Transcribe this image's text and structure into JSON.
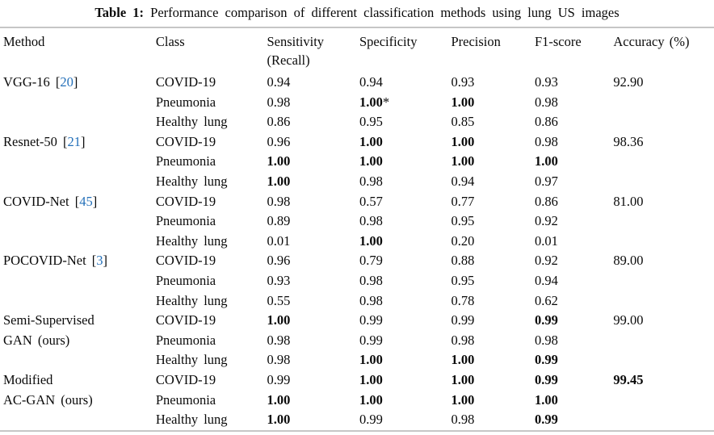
{
  "caption": {
    "label": "Table 1:",
    "text": "Performance comparison of different classification methods using lung US images"
  },
  "colors": {
    "citation_link": "#2470b9",
    "rule_gray": "#c6c6c6",
    "text": "#0a0a0a"
  },
  "table": {
    "headers": [
      {
        "line1": "Method"
      },
      {
        "line1": "Class"
      },
      {
        "line1": "Sensitivity",
        "line2": "(Recall)"
      },
      {
        "line1": "Specificity"
      },
      {
        "line1": "Precision"
      },
      {
        "line1": "F1-score"
      },
      {
        "line1": "Accuracy (%)"
      }
    ],
    "rows": [
      {
        "method": "VGG-16",
        "ref": "20",
        "class_label": "COVID-19",
        "sensitivity": {
          "v": "0.94",
          "b": false
        },
        "specificity": {
          "v": "0.94",
          "b": false
        },
        "precision": {
          "v": "0.93",
          "b": false
        },
        "f1": {
          "v": "0.93",
          "b": false
        },
        "accuracy": {
          "v": "92.90",
          "b": false
        }
      },
      {
        "method": null,
        "ref": null,
        "class_label": "Pneumonia",
        "sensitivity": {
          "v": "0.98",
          "b": false
        },
        "specificity": {
          "v": "1.00",
          "b": true,
          "note": "*"
        },
        "precision": {
          "v": "1.00",
          "b": true
        },
        "f1": {
          "v": "0.98",
          "b": false
        },
        "accuracy": null
      },
      {
        "method": null,
        "ref": null,
        "class_label": "Healthy lung",
        "sensitivity": {
          "v": "0.86",
          "b": false
        },
        "specificity": {
          "v": "0.95",
          "b": false
        },
        "precision": {
          "v": "0.85",
          "b": false
        },
        "f1": {
          "v": "0.86",
          "b": false
        },
        "accuracy": null
      },
      {
        "method": "Resnet-50",
        "ref": "21",
        "class_label": "COVID-19",
        "sensitivity": {
          "v": "0.96",
          "b": false
        },
        "specificity": {
          "v": "1.00",
          "b": true
        },
        "precision": {
          "v": "1.00",
          "b": true
        },
        "f1": {
          "v": "0.98",
          "b": false
        },
        "accuracy": {
          "v": "98.36",
          "b": false
        }
      },
      {
        "method": null,
        "ref": null,
        "class_label": "Pneumonia",
        "sensitivity": {
          "v": "1.00",
          "b": true
        },
        "specificity": {
          "v": "1.00",
          "b": true
        },
        "precision": {
          "v": "1.00",
          "b": true
        },
        "f1": {
          "v": "1.00",
          "b": true
        },
        "accuracy": null
      },
      {
        "method": null,
        "ref": null,
        "class_label": "Healthy lung",
        "sensitivity": {
          "v": "1.00",
          "b": true
        },
        "specificity": {
          "v": "0.98",
          "b": false
        },
        "precision": {
          "v": "0.94",
          "b": false
        },
        "f1": {
          "v": "0.97",
          "b": false
        },
        "accuracy": null
      },
      {
        "method": "COVID-Net",
        "ref": "45",
        "class_label": "COVID-19",
        "sensitivity": {
          "v": "0.98",
          "b": false
        },
        "specificity": {
          "v": "0.57",
          "b": false
        },
        "precision": {
          "v": "0.77",
          "b": false
        },
        "f1": {
          "v": "0.86",
          "b": false
        },
        "accuracy": {
          "v": "81.00",
          "b": false
        }
      },
      {
        "method": null,
        "ref": null,
        "class_label": "Pneumonia",
        "sensitivity": {
          "v": "0.89",
          "b": false
        },
        "specificity": {
          "v": "0.98",
          "b": false
        },
        "precision": {
          "v": "0.95",
          "b": false
        },
        "f1": {
          "v": "0.92",
          "b": false
        },
        "accuracy": null
      },
      {
        "method": null,
        "ref": null,
        "class_label": "Healthy lung",
        "sensitivity": {
          "v": "0.01",
          "b": false
        },
        "specificity": {
          "v": "1.00",
          "b": true
        },
        "precision": {
          "v": "0.20",
          "b": false
        },
        "f1": {
          "v": "0.01",
          "b": false
        },
        "accuracy": null
      },
      {
        "method": "POCOVID-Net",
        "ref": "3",
        "class_label": "COVID-19",
        "sensitivity": {
          "v": "0.96",
          "b": false
        },
        "specificity": {
          "v": "0.79",
          "b": false
        },
        "precision": {
          "v": "0.88",
          "b": false
        },
        "f1": {
          "v": "0.92",
          "b": false
        },
        "accuracy": {
          "v": "89.00",
          "b": false
        }
      },
      {
        "method": null,
        "ref": null,
        "class_label": "Pneumonia",
        "sensitivity": {
          "v": "0.93",
          "b": false
        },
        "specificity": {
          "v": "0.98",
          "b": false
        },
        "precision": {
          "v": "0.95",
          "b": false
        },
        "f1": {
          "v": "0.94",
          "b": false
        },
        "accuracy": null
      },
      {
        "method": null,
        "ref": null,
        "class_label": "Healthy lung",
        "sensitivity": {
          "v": "0.55",
          "b": false
        },
        "specificity": {
          "v": "0.98",
          "b": false
        },
        "precision": {
          "v": "0.78",
          "b": false
        },
        "f1": {
          "v": "0.62",
          "b": false
        },
        "accuracy": null
      },
      {
        "method": "Semi-Supervised",
        "ref": null,
        "class_label": "COVID-19",
        "sensitivity": {
          "v": "1.00",
          "b": true
        },
        "specificity": {
          "v": "0.99",
          "b": false
        },
        "precision": {
          "v": "0.99",
          "b": false
        },
        "f1": {
          "v": "0.99",
          "b": true
        },
        "accuracy": {
          "v": "99.00",
          "b": false
        }
      },
      {
        "method": "GAN (ours)",
        "ref": null,
        "class_label": "Pneumonia",
        "sensitivity": {
          "v": "0.98",
          "b": false
        },
        "specificity": {
          "v": "0.99",
          "b": false
        },
        "precision": {
          "v": "0.98",
          "b": false
        },
        "f1": {
          "v": "0.98",
          "b": false
        },
        "accuracy": null
      },
      {
        "method": null,
        "ref": null,
        "class_label": "Healthy lung",
        "sensitivity": {
          "v": "0.98",
          "b": false
        },
        "specificity": {
          "v": "1.00",
          "b": true
        },
        "precision": {
          "v": "1.00",
          "b": true
        },
        "f1": {
          "v": "0.99",
          "b": true
        },
        "accuracy": null
      },
      {
        "method": "Modified",
        "ref": null,
        "class_label": "COVID-19",
        "sensitivity": {
          "v": "0.99",
          "b": false
        },
        "specificity": {
          "v": "1.00",
          "b": true
        },
        "precision": {
          "v": "1.00",
          "b": true
        },
        "f1": {
          "v": "0.99",
          "b": true
        },
        "accuracy": {
          "v": "99.45",
          "b": true
        }
      },
      {
        "method": "AC-GAN (ours)",
        "ref": null,
        "class_label": "Pneumonia",
        "sensitivity": {
          "v": "1.00",
          "b": true
        },
        "specificity": {
          "v": "1.00",
          "b": true
        },
        "precision": {
          "v": "1.00",
          "b": true
        },
        "f1": {
          "v": "1.00",
          "b": true
        },
        "accuracy": null
      },
      {
        "method": null,
        "ref": null,
        "class_label": "Healthy lung",
        "sensitivity": {
          "v": "1.00",
          "b": true
        },
        "specificity": {
          "v": "0.99",
          "b": false
        },
        "precision": {
          "v": "0.98",
          "b": false
        },
        "f1": {
          "v": "0.99",
          "b": true
        },
        "accuracy": null
      }
    ]
  }
}
